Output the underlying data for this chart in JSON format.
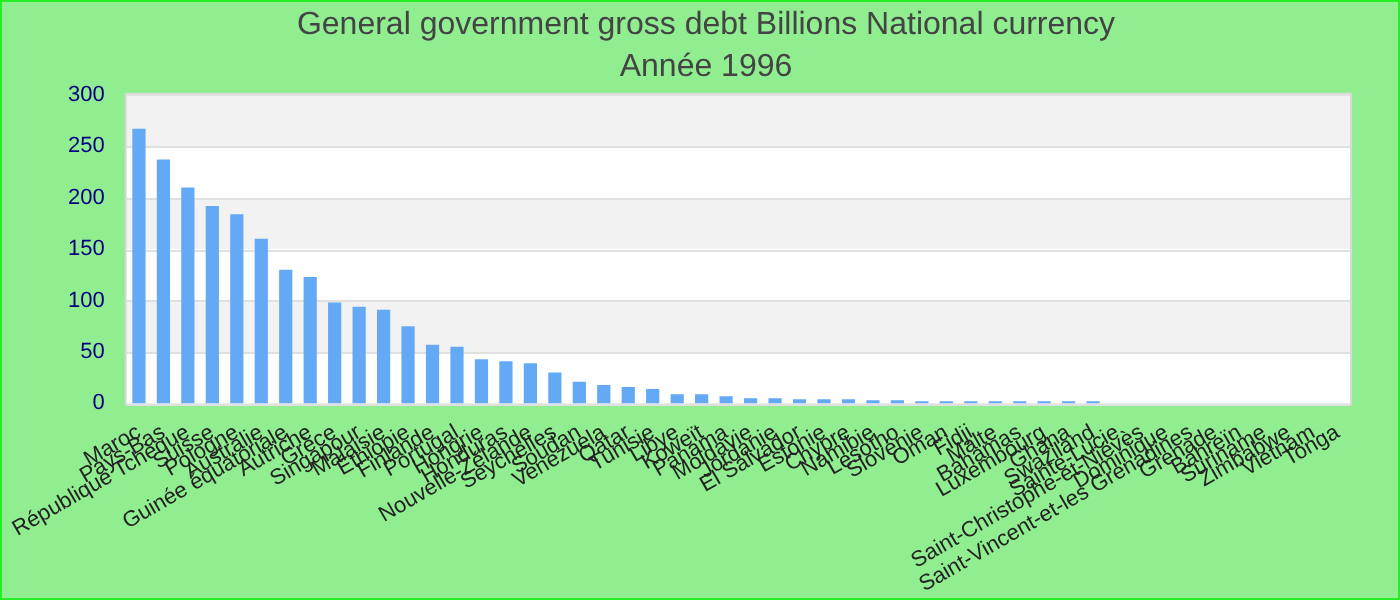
{
  "chart_data": {
    "type": "bar",
    "title": "General government gross debt Billions National currency",
    "subtitle": "Année 1996",
    "categories": [
      "Maroc",
      "Pays-Bas",
      "République Tchèque",
      "Suisse",
      "Pologne",
      "Australie",
      "Guinée équatoriale",
      "Autriche",
      "Grèce",
      "Singapour",
      "Malaisie",
      "Éthiopie",
      "Finlande",
      "Portugal",
      "Hongrie",
      "Honduras",
      "Nouvelle-Zélande",
      "Seychelles",
      "Soudan",
      "Venezuela",
      "Qatar",
      "Tunisie",
      "Libye",
      "Koweït",
      "Panama",
      "Moldavie",
      "Jordanie",
      "El Salvador",
      "Estonie",
      "Chypre",
      "Namibie",
      "Lesotho",
      "Slovénie",
      "Oman",
      "Fidji",
      "Malte",
      "Bahamas",
      "Luxembourg",
      "Ghana",
      "Swaziland",
      "Sainte-Lucie",
      "Saint-Christophe-et-Niévès",
      "Dominique",
      "Saint-Vincent-et-les Grenadines",
      "Grenade",
      "Bahreïn",
      "Suriname",
      "Zimbabwe",
      "Vietnam",
      "Tonga"
    ],
    "values": [
      267,
      237,
      210,
      192,
      184,
      160,
      130,
      123,
      98,
      94,
      91,
      75,
      57,
      55,
      43,
      41,
      39,
      30,
      21,
      18,
      16,
      14,
      9,
      9,
      7,
      5,
      5,
      4,
      4,
      4,
      3,
      3,
      2,
      2,
      2,
      2,
      2,
      2,
      2,
      2,
      0,
      0,
      0,
      0,
      0,
      0,
      0,
      0,
      0,
      0
    ],
    "color": "#63a9f5",
    "ylim": [
      0,
      300
    ],
    "yticks": [
      0,
      50,
      100,
      150,
      200,
      250,
      300
    ],
    "grid": "y"
  }
}
